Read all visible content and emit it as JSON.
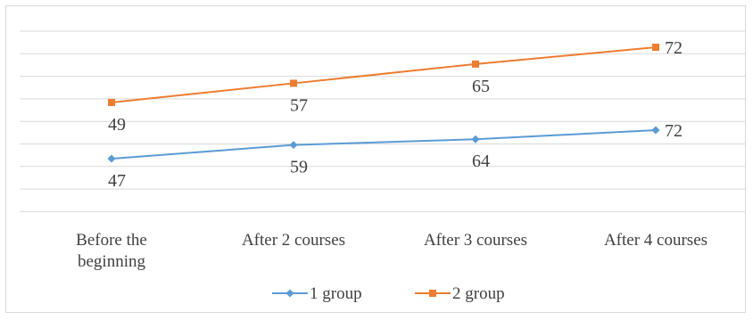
{
  "chart_data": {
    "type": "line",
    "title": "",
    "xlabel": "",
    "ylabel": "",
    "categories": [
      [
        "Before the",
        "beginning"
      ],
      [
        "After 2 courses"
      ],
      [
        "After 3 courses"
      ],
      [
        "After 4 courses"
      ]
    ],
    "series": [
      {
        "name": "1 group",
        "values": [
          47,
          59,
          64,
          72
        ],
        "color": "#5b9bd5",
        "marker": "diamond"
      },
      {
        "name": "2 group",
        "values": [
          49,
          57,
          65,
          72
        ],
        "color": "#ed7d31",
        "marker": "square"
      }
    ],
    "grid": true,
    "legend": "bottom",
    "data_labels": true
  }
}
